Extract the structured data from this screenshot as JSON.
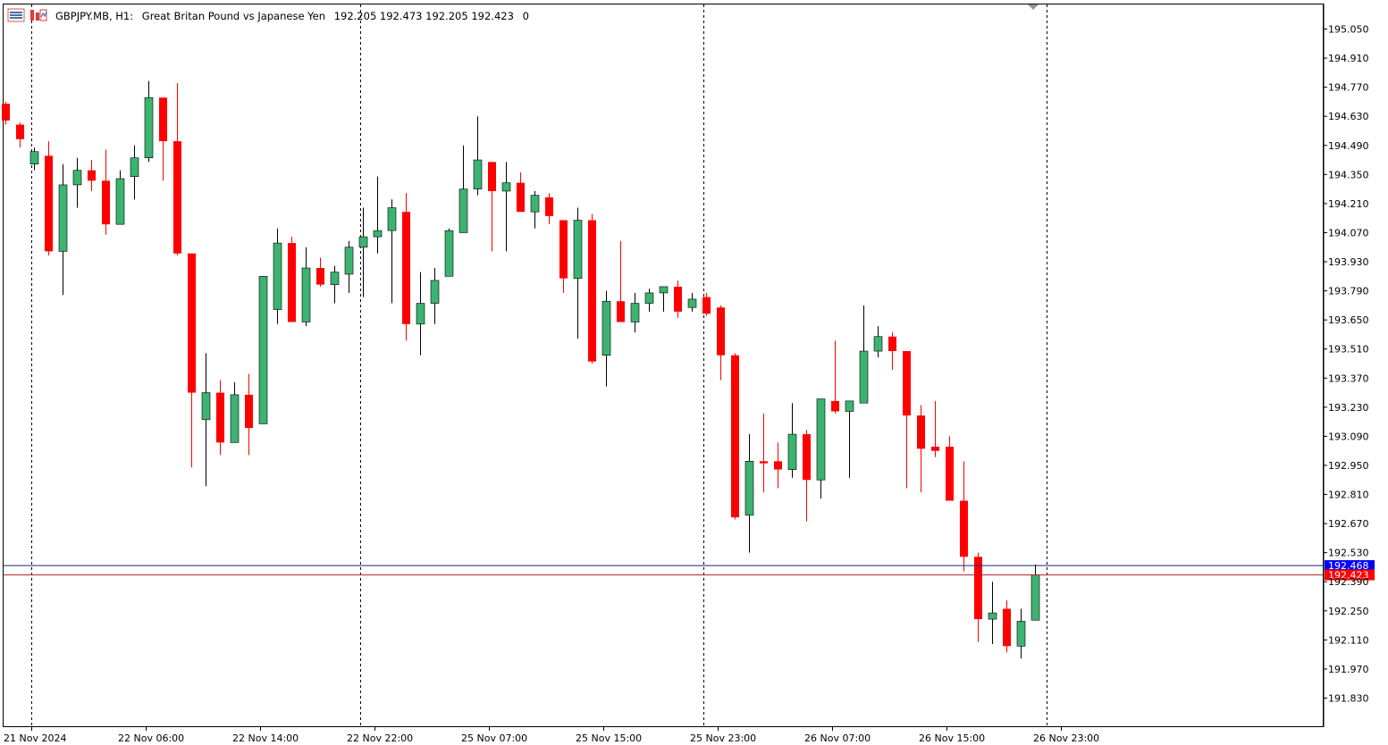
{
  "header": {
    "symbol": "GBPJPY.MB, H1:",
    "description": "Great Britan Pound vs Japanese Yen",
    "ohlc": "192.205 192.473 192.205 192.423",
    "volume": "0"
  },
  "colors": {
    "bull": "#3cb371",
    "bear": "#ff0000",
    "ask_line": "#1a237e",
    "bid_line": "#b22222",
    "ask_label_bg": "#0000ff",
    "bid_label_bg": "#ff0000"
  },
  "price_labels": {
    "ask": "192.468",
    "bid": "192.423"
  },
  "icons": [
    "chart-menu-icon",
    "indicator-icon"
  ],
  "chart_data": {
    "type": "candlestick",
    "title": "GBPJPY.MB, H1: Great Britan Pound vs Japanese Yen",
    "timeframe": "H1",
    "ylim": [
      191.76,
      195.12
    ],
    "y_ticks": [
      "195.050",
      "194.910",
      "194.770",
      "194.630",
      "194.490",
      "194.350",
      "194.210",
      "194.070",
      "193.930",
      "193.790",
      "193.650",
      "193.510",
      "193.370",
      "193.230",
      "193.090",
      "192.950",
      "192.810",
      "192.670",
      "192.530",
      "192.390",
      "192.250",
      "192.110",
      "191.970",
      "191.830"
    ],
    "x_tick_labels": [
      "21 Nov 2024",
      "22 Nov 06:00",
      "22 Nov 14:00",
      "22 Nov 22:00",
      "25 Nov 07:00",
      "25 Nov 15:00",
      "25 Nov 23:00",
      "26 Nov 07:00",
      "26 Nov 15:00",
      "26 Nov 23:00"
    ],
    "period_separators": [
      "21 Nov 2024",
      "22 Nov 22:00",
      "25 Nov 23:00",
      "26 Nov 23:00"
    ],
    "ask": 192.468,
    "bid": 192.423,
    "grid": false,
    "candles": [
      {
        "o": 194.69,
        "h": 194.7,
        "l": 194.59,
        "c": 194.61
      },
      {
        "o": 194.59,
        "h": 194.6,
        "l": 194.48,
        "c": 194.52
      },
      {
        "o": 194.4,
        "h": 194.48,
        "l": 194.37,
        "c": 194.46
      },
      {
        "o": 194.44,
        "h": 194.51,
        "l": 193.96,
        "c": 193.98
      },
      {
        "o": 193.98,
        "h": 194.4,
        "l": 193.77,
        "c": 194.3
      },
      {
        "o": 194.3,
        "h": 194.43,
        "l": 194.19,
        "c": 194.37
      },
      {
        "o": 194.37,
        "h": 194.42,
        "l": 194.27,
        "c": 194.32
      },
      {
        "o": 194.32,
        "h": 194.47,
        "l": 194.06,
        "c": 194.11
      },
      {
        "o": 194.11,
        "h": 194.37,
        "l": 194.11,
        "c": 194.33
      },
      {
        "o": 194.34,
        "h": 194.49,
        "l": 194.23,
        "c": 194.43
      },
      {
        "o": 194.43,
        "h": 194.8,
        "l": 194.41,
        "c": 194.72
      },
      {
        "o": 194.72,
        "h": 194.72,
        "l": 194.32,
        "c": 194.51
      },
      {
        "o": 194.51,
        "h": 194.79,
        "l": 193.96,
        "c": 193.97
      },
      {
        "o": 193.97,
        "h": 193.97,
        "l": 192.94,
        "c": 193.3
      },
      {
        "o": 193.17,
        "h": 193.49,
        "l": 192.85,
        "c": 193.3
      },
      {
        "o": 193.3,
        "h": 193.36,
        "l": 193.0,
        "c": 193.06
      },
      {
        "o": 193.06,
        "h": 193.35,
        "l": 193.06,
        "c": 193.29
      },
      {
        "o": 193.29,
        "h": 193.39,
        "l": 193.0,
        "c": 193.13
      },
      {
        "o": 193.15,
        "h": 193.86,
        "l": 193.15,
        "c": 193.86
      },
      {
        "o": 193.7,
        "h": 194.09,
        "l": 193.63,
        "c": 194.02
      },
      {
        "o": 194.02,
        "h": 194.05,
        "l": 193.64,
        "c": 193.64
      },
      {
        "o": 193.64,
        "h": 194.0,
        "l": 193.62,
        "c": 193.9
      },
      {
        "o": 193.9,
        "h": 193.95,
        "l": 193.81,
        "c": 193.82
      },
      {
        "o": 193.82,
        "h": 193.91,
        "l": 193.73,
        "c": 193.88
      },
      {
        "o": 193.87,
        "h": 194.03,
        "l": 193.78,
        "c": 194.0
      },
      {
        "o": 194.0,
        "h": 194.19,
        "l": 193.76,
        "c": 194.05
      },
      {
        "o": 194.05,
        "h": 194.34,
        "l": 193.97,
        "c": 194.08
      },
      {
        "o": 194.08,
        "h": 194.23,
        "l": 193.73,
        "c": 194.19
      },
      {
        "o": 194.17,
        "h": 194.26,
        "l": 193.55,
        "c": 193.63
      },
      {
        "o": 193.63,
        "h": 193.88,
        "l": 193.48,
        "c": 193.73
      },
      {
        "o": 193.73,
        "h": 193.9,
        "l": 193.63,
        "c": 193.84
      },
      {
        "o": 193.86,
        "h": 194.09,
        "l": 193.86,
        "c": 194.08
      },
      {
        "o": 194.07,
        "h": 194.49,
        "l": 194.07,
        "c": 194.28
      },
      {
        "o": 194.28,
        "h": 194.63,
        "l": 194.25,
        "c": 194.42
      },
      {
        "o": 194.41,
        "h": 194.41,
        "l": 193.98,
        "c": 194.27
      },
      {
        "o": 194.27,
        "h": 194.41,
        "l": 193.98,
        "c": 194.31
      },
      {
        "o": 194.31,
        "h": 194.36,
        "l": 194.18,
        "c": 194.17
      },
      {
        "o": 194.17,
        "h": 194.27,
        "l": 194.09,
        "c": 194.25
      },
      {
        "o": 194.24,
        "h": 194.26,
        "l": 194.11,
        "c": 194.15
      },
      {
        "o": 194.13,
        "h": 194.13,
        "l": 193.78,
        "c": 193.85
      },
      {
        "o": 193.85,
        "h": 194.19,
        "l": 193.56,
        "c": 194.13
      },
      {
        "o": 194.13,
        "h": 194.16,
        "l": 193.44,
        "c": 193.45
      },
      {
        "o": 193.48,
        "h": 193.79,
        "l": 193.33,
        "c": 193.74
      },
      {
        "o": 193.74,
        "h": 194.03,
        "l": 193.66,
        "c": 193.64
      },
      {
        "o": 193.64,
        "h": 193.78,
        "l": 193.59,
        "c": 193.73
      },
      {
        "o": 193.73,
        "h": 193.8,
        "l": 193.69,
        "c": 193.78
      },
      {
        "o": 193.78,
        "h": 193.81,
        "l": 193.69,
        "c": 193.81
      },
      {
        "o": 193.81,
        "h": 193.84,
        "l": 193.66,
        "c": 193.69
      },
      {
        "o": 193.71,
        "h": 193.78,
        "l": 193.69,
        "c": 193.75
      },
      {
        "o": 193.76,
        "h": 193.78,
        "l": 193.67,
        "c": 193.68
      },
      {
        "o": 193.71,
        "h": 193.72,
        "l": 193.36,
        "c": 193.48
      },
      {
        "o": 193.48,
        "h": 193.49,
        "l": 192.69,
        "c": 192.7
      },
      {
        "o": 192.71,
        "h": 193.1,
        "l": 192.53,
        "c": 192.97
      },
      {
        "o": 192.97,
        "h": 193.2,
        "l": 192.82,
        "c": 192.96
      },
      {
        "o": 192.97,
        "h": 193.06,
        "l": 192.84,
        "c": 192.93
      },
      {
        "o": 192.93,
        "h": 193.25,
        "l": 192.89,
        "c": 193.1
      },
      {
        "o": 193.1,
        "h": 193.12,
        "l": 192.68,
        "c": 192.88
      },
      {
        "o": 192.88,
        "h": 193.27,
        "l": 192.79,
        "c": 193.27
      },
      {
        "o": 193.26,
        "h": 193.55,
        "l": 193.2,
        "c": 193.21
      },
      {
        "o": 193.21,
        "h": 193.26,
        "l": 192.89,
        "c": 193.26
      },
      {
        "o": 193.25,
        "h": 193.72,
        "l": 193.25,
        "c": 193.5
      },
      {
        "o": 193.5,
        "h": 193.62,
        "l": 193.47,
        "c": 193.57
      },
      {
        "o": 193.57,
        "h": 193.59,
        "l": 193.41,
        "c": 193.5
      },
      {
        "o": 193.5,
        "h": 193.5,
        "l": 192.84,
        "c": 193.19
      },
      {
        "o": 193.19,
        "h": 193.24,
        "l": 192.82,
        "c": 193.03
      },
      {
        "o": 193.04,
        "h": 193.26,
        "l": 192.99,
        "c": 193.02
      },
      {
        "o": 193.04,
        "h": 193.09,
        "l": 192.78,
        "c": 192.78
      },
      {
        "o": 192.78,
        "h": 192.97,
        "l": 192.44,
        "c": 192.51
      },
      {
        "o": 192.51,
        "h": 192.53,
        "l": 192.1,
        "c": 192.21
      },
      {
        "o": 192.21,
        "h": 192.39,
        "l": 192.09,
        "c": 192.24
      },
      {
        "o": 192.26,
        "h": 192.3,
        "l": 192.05,
        "c": 192.08
      },
      {
        "o": 192.08,
        "h": 192.26,
        "l": 192.02,
        "c": 192.2
      },
      {
        "o": 192.205,
        "h": 192.473,
        "l": 192.205,
        "c": 192.423
      }
    ]
  }
}
